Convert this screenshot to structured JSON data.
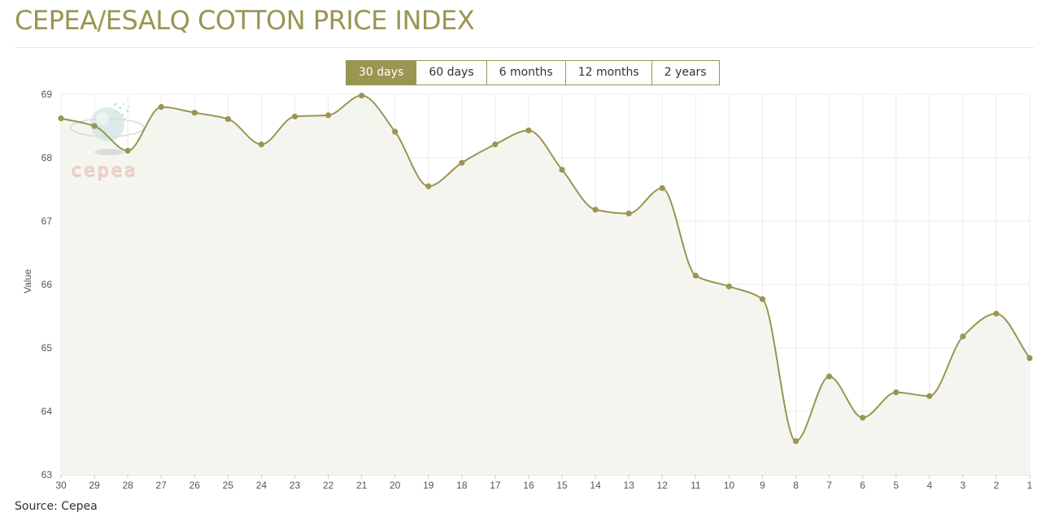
{
  "header": {
    "title": "CEPEA/ESALQ COTTON PRICE INDEX"
  },
  "range_tabs": {
    "selected": "30 days",
    "options": [
      "30 days",
      "60 days",
      "6 months",
      "12 months",
      "2 years"
    ]
  },
  "watermark": {
    "text": "cepea"
  },
  "footer": {
    "source": "Source: Cepea"
  },
  "colors": {
    "accent": "#9a9551",
    "line": "#9a9551",
    "area_fill": "#f5f5f0",
    "grid": "#ebebeb",
    "watermark_text": "#e7bcb3"
  },
  "chart_data": {
    "type": "area",
    "title": "",
    "xlabel": "",
    "ylabel": "Value",
    "ylim": [
      63,
      69
    ],
    "yticks": [
      63,
      64,
      65,
      66,
      67,
      68,
      69
    ],
    "grid": true,
    "legend": "none",
    "categories": [
      "30",
      "29",
      "28",
      "27",
      "26",
      "25",
      "24",
      "23",
      "22",
      "21",
      "20",
      "19",
      "18",
      "17",
      "16",
      "15",
      "14",
      "13",
      "12",
      "11",
      "10",
      "9",
      "8",
      "7",
      "6",
      "5",
      "4",
      "3",
      "2",
      "1"
    ],
    "series": [
      {
        "values": [
          68.62,
          68.5,
          68.11,
          68.8,
          68.71,
          68.61,
          68.21,
          68.65,
          68.67,
          68.98,
          68.41,
          67.55,
          67.92,
          68.21,
          68.43,
          67.81,
          67.18,
          67.12,
          67.52,
          66.14,
          65.97,
          65.77,
          63.53,
          64.55,
          63.9,
          64.3,
          64.24,
          65.18,
          65.54,
          64.84
        ]
      }
    ]
  }
}
